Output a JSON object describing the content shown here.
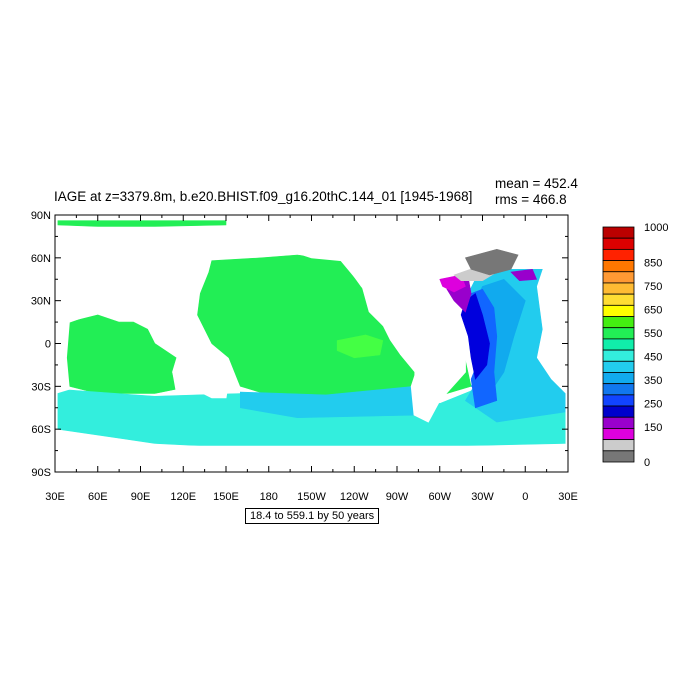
{
  "title": "IAGE at z=3379.8m, b.e20.BHIST.f09_g16.20thC.144_01 [1945-1968]",
  "stats": {
    "mean": "mean = 452.4",
    "rms": "rms = 466.8"
  },
  "range_note": "18.4 to 559.1 by 50 years",
  "colors": {
    "ocean_green": "#22ee55",
    "ocean_green_light": "#44ff44",
    "ocean_cyan": "#33eedd",
    "ocean_sky": "#22ccee",
    "ocean_blue_mid": "#11aaee",
    "ocean_blue": "#1166ff",
    "ocean_deep_blue": "#0000dd",
    "ocean_purple": "#9900cc",
    "ocean_magenta": "#dd00dd",
    "ocean_gray_light": "#cccccc",
    "ocean_gray": "#777777",
    "land": "#ffffff"
  },
  "chart_data": {
    "type": "heatmap",
    "variable": "IAGE",
    "x_ticks": [
      "30E",
      "60E",
      "90E",
      "120E",
      "150E",
      "180",
      "150W",
      "120W",
      "90W",
      "60W",
      "30W",
      "0",
      "30E"
    ],
    "y_ticks": [
      "90N",
      "60N",
      "30N",
      "0",
      "30S",
      "60S",
      "90S"
    ],
    "xlim": [
      30,
      390
    ],
    "ylim": [
      -90,
      90
    ],
    "colorbar": {
      "labels": [
        "1000",
        "850",
        "750",
        "650",
        "550",
        "450",
        "350",
        "250",
        "150",
        "0"
      ],
      "label_values": [
        1000,
        850,
        750,
        650,
        550,
        450,
        350,
        250,
        150,
        0
      ],
      "colors": [
        "#bb0000",
        "#dd0000",
        "#ff2200",
        "#ff7700",
        "#ff9933",
        "#ffbb33",
        "#ffdd33",
        "#ffff00",
        "#44ee11",
        "#22ee55",
        "#11eeaa",
        "#33eedd",
        "#22ccee",
        "#11aaee",
        "#1177ee",
        "#1144ff",
        "#0000cc",
        "#9900cc",
        "#dd00dd",
        "#cccccc",
        "#777777"
      ]
    },
    "regions": [
      {
        "name": "arctic-strip",
        "value": 500,
        "color": "#22ee55",
        "poly": [
          [
            32,
            86
          ],
          [
            150,
            86
          ],
          [
            150,
            83
          ],
          [
            100,
            82
          ],
          [
            60,
            82
          ],
          [
            32,
            83
          ]
        ]
      },
      {
        "name": "pacific-basin",
        "value": 530,
        "color": "#22ee55",
        "poly": [
          [
            140,
            58
          ],
          [
            175,
            60
          ],
          [
            200,
            62
          ],
          [
            230,
            58
          ],
          [
            245,
            40
          ],
          [
            250,
            22
          ],
          [
            260,
            12
          ],
          [
            265,
            2
          ],
          [
            272,
            -8
          ],
          [
            282,
            -20
          ],
          [
            282,
            -30
          ],
          [
            250,
            -35
          ],
          [
            220,
            -38
          ],
          [
            180,
            -36
          ],
          [
            160,
            -30
          ],
          [
            152,
            -10
          ],
          [
            140,
            0
          ],
          [
            130,
            20
          ],
          [
            132,
            35
          ],
          [
            138,
            50
          ]
        ]
      },
      {
        "name": "indian-basin",
        "value": 510,
        "color": "#22ee55",
        "poly": [
          [
            40,
            15
          ],
          [
            60,
            20
          ],
          [
            75,
            15
          ],
          [
            85,
            15
          ],
          [
            95,
            10
          ],
          [
            100,
            0
          ],
          [
            115,
            -10
          ],
          [
            112,
            -20
          ],
          [
            115,
            -32
          ],
          [
            100,
            -35
          ],
          [
            60,
            -35
          ],
          [
            40,
            -30
          ],
          [
            38,
            -10
          ]
        ]
      },
      {
        "name": "east-pacific-light",
        "value": 560,
        "color": "#44ff44",
        "poly": [
          [
            228,
            2
          ],
          [
            248,
            6
          ],
          [
            260,
            2
          ],
          [
            258,
            -8
          ],
          [
            240,
            -10
          ],
          [
            228,
            -5
          ]
        ]
      },
      {
        "name": "south-atlantic-green",
        "value": 500,
        "color": "#22ee55",
        "poly": [
          [
            298,
            -8
          ],
          [
            318,
            -12
          ],
          [
            322,
            -30
          ],
          [
            305,
            -35
          ],
          [
            295,
            -22
          ]
        ]
      },
      {
        "name": "southern-ocean",
        "value": 440,
        "color": "#33eedd",
        "poly": [
          [
            32,
            -32
          ],
          [
            100,
            -37
          ],
          [
            160,
            -35
          ],
          [
            220,
            -39
          ],
          [
            282,
            -32
          ],
          [
            300,
            -42
          ],
          [
            330,
            -30
          ],
          [
            385,
            -32
          ],
          [
            388,
            -48
          ],
          [
            388,
            -70
          ],
          [
            300,
            -72
          ],
          [
            200,
            -75
          ],
          [
            100,
            -70
          ],
          [
            32,
            -60
          ]
        ]
      },
      {
        "name": "south-pacific-sky",
        "value": 400,
        "color": "#22ccee",
        "poly": [
          [
            160,
            -34
          ],
          [
            220,
            -36
          ],
          [
            282,
            -30
          ],
          [
            290,
            -50
          ],
          [
            200,
            -52
          ],
          [
            160,
            -45
          ]
        ]
      },
      {
        "name": "north-atlantic-sky",
        "value": 360,
        "color": "#22ccee",
        "poly": [
          [
            325,
            45
          ],
          [
            350,
            52
          ],
          [
            372,
            52
          ],
          [
            368,
            40
          ],
          [
            372,
            10
          ],
          [
            368,
            -10
          ],
          [
            378,
            -25
          ],
          [
            388,
            -35
          ],
          [
            388,
            -48
          ],
          [
            340,
            -55
          ],
          [
            318,
            -40
          ],
          [
            330,
            -20
          ],
          [
            322,
            0
          ],
          [
            318,
            20
          ],
          [
            320,
            35
          ]
        ]
      },
      {
        "name": "north-atlantic-blue-mid",
        "value": 320,
        "color": "#11aaee",
        "poly": [
          [
            330,
            40
          ],
          [
            345,
            45
          ],
          [
            360,
            30
          ],
          [
            352,
            5
          ],
          [
            345,
            -20
          ],
          [
            335,
            -35
          ],
          [
            322,
            -30
          ],
          [
            335,
            -10
          ],
          [
            330,
            10
          ],
          [
            325,
            30
          ]
        ]
      },
      {
        "name": "atlantic-blue",
        "value": 270,
        "color": "#1166ff",
        "poly": [
          [
            322,
            35
          ],
          [
            330,
            38
          ],
          [
            338,
            25
          ],
          [
            340,
            5
          ],
          [
            338,
            -20
          ],
          [
            340,
            -40
          ],
          [
            325,
            -45
          ],
          [
            322,
            -25
          ],
          [
            330,
            -5
          ],
          [
            322,
            15
          ]
        ]
      },
      {
        "name": "atlantic-deep-blue",
        "value": 220,
        "color": "#0000dd",
        "poly": [
          [
            318,
            30
          ],
          [
            325,
            35
          ],
          [
            330,
            20
          ],
          [
            335,
            0
          ],
          [
            333,
            -15
          ],
          [
            325,
            -25
          ],
          [
            322,
            -10
          ],
          [
            320,
            5
          ],
          [
            315,
            20
          ]
        ]
      },
      {
        "name": "labrador-purple",
        "value": 170,
        "color": "#9900cc",
        "poly": [
          [
            305,
            42
          ],
          [
            320,
            46
          ],
          [
            322,
            35
          ],
          [
            318,
            22
          ],
          [
            310,
            30
          ],
          [
            305,
            38
          ]
        ]
      },
      {
        "name": "labrador-magenta",
        "value": 120,
        "color": "#dd00dd",
        "poly": [
          [
            300,
            45
          ],
          [
            315,
            48
          ],
          [
            318,
            40
          ],
          [
            310,
            36
          ],
          [
            302,
            40
          ]
        ]
      },
      {
        "name": "nordic-light-gray",
        "value": 80,
        "color": "#cccccc",
        "poly": [
          [
            310,
            48
          ],
          [
            330,
            55
          ],
          [
            340,
            50
          ],
          [
            330,
            44
          ],
          [
            315,
            44
          ]
        ]
      },
      {
        "name": "nordic-gray",
        "value": 30,
        "color": "#777777",
        "poly": [
          [
            318,
            60
          ],
          [
            340,
            66
          ],
          [
            355,
            62
          ],
          [
            350,
            52
          ],
          [
            335,
            48
          ],
          [
            322,
            52
          ]
        ]
      },
      {
        "name": "barents-purple",
        "value": 180,
        "color": "#9900cc",
        "poly": [
          [
            350,
            50
          ],
          [
            365,
            52
          ],
          [
            368,
            45
          ],
          [
            356,
            44
          ]
        ]
      }
    ],
    "land_masses": [
      {
        "name": "africa",
        "poly": [
          [
            40,
            15
          ],
          [
            60,
            22
          ],
          [
            45,
            35
          ],
          [
            30,
            35
          ],
          [
            30,
            -35
          ],
          [
            40,
            -32
          ],
          [
            38,
            -10
          ]
        ]
      },
      {
        "name": "south-america",
        "poly": [
          [
            282,
            8
          ],
          [
            298,
            -5
          ],
          [
            318,
            -8
          ],
          [
            318,
            -20
          ],
          [
            300,
            -40
          ],
          [
            292,
            -55
          ],
          [
            282,
            -50
          ],
          [
            280,
            -30
          ],
          [
            285,
            -15
          ]
        ]
      },
      {
        "name": "north-america",
        "poly": [
          [
            195,
            65
          ],
          [
            240,
            72
          ],
          [
            290,
            70
          ],
          [
            300,
            50
          ],
          [
            298,
            35
          ],
          [
            290,
            25
          ],
          [
            275,
            15
          ],
          [
            262,
            20
          ],
          [
            245,
            40
          ],
          [
            232,
            58
          ],
          [
            210,
            60
          ]
        ]
      },
      {
        "name": "australia",
        "poly": [
          [
            113,
            -22
          ],
          [
            125,
            -14
          ],
          [
            140,
            -12
          ],
          [
            152,
            -25
          ],
          [
            150,
            -38
          ],
          [
            140,
            -38
          ],
          [
            128,
            -32
          ],
          [
            115,
            -33
          ]
        ]
      },
      {
        "name": "antarctica-band",
        "poly": [
          [
            30,
            -72
          ],
          [
            390,
            -72
          ],
          [
            390,
            -90
          ],
          [
            30,
            -90
          ]
        ]
      }
    ]
  }
}
